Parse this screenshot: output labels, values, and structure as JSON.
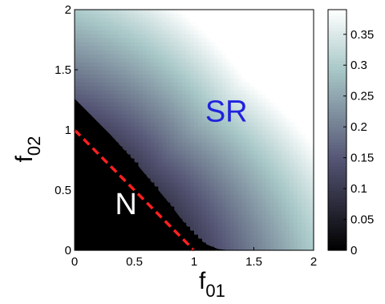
{
  "chart_data": {
    "type": "heatmap",
    "xlabel_base": "f",
    "xlabel_sub": "01",
    "ylabel_base": "f",
    "ylabel_sub": "02",
    "xlim": [
      0,
      2
    ],
    "ylim": [
      0,
      2
    ],
    "x_ticks": [
      "0",
      "0.5",
      "1",
      "1.5",
      "2"
    ],
    "y_ticks": [
      "0",
      "0.5",
      "1",
      "1.5",
      "2"
    ],
    "colorbar": {
      "range": [
        0,
        0.39
      ],
      "ticks": [
        "0",
        "0.05",
        "0.1",
        "0.15",
        "0.2",
        "0.25",
        "0.3",
        "0.35"
      ],
      "colormap": "bone"
    },
    "regions": [
      {
        "label": "N",
        "color": "#ffffff",
        "x": 0.43,
        "y": 0.3
      },
      {
        "label": "SR",
        "color": "#1f22dd",
        "x": 1.27,
        "y": 1.07
      }
    ],
    "boundary_curve": {
      "description_points_x": [
        0,
        0.1,
        0.2,
        0.3,
        0.4,
        0.5,
        0.6,
        0.7,
        0.8,
        0.9,
        1.0,
        1.1,
        1.2,
        1.3
      ],
      "description_points_y": [
        1.26,
        1.16,
        1.06,
        0.96,
        0.85,
        0.74,
        0.62,
        0.5,
        0.38,
        0.25,
        0.13,
        0.05,
        0.01,
        0
      ]
    },
    "dashed_line": {
      "x": [
        0,
        1
      ],
      "y": [
        1,
        0
      ],
      "color": "#ff2020",
      "style": "dashed"
    }
  }
}
